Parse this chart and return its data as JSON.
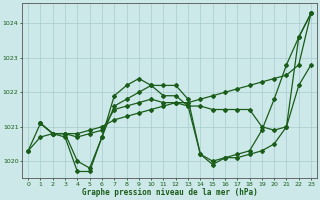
{
  "background_color": "#cce8e8",
  "grid_color": "#a8cccc",
  "line_color": "#1a5c1a",
  "xlabel": "Graphe pression niveau de la mer (hPa)",
  "xlabel_color": "#1a5c1a",
  "xlim": [
    -0.5,
    23.5
  ],
  "ylim": [
    1019.5,
    1024.6
  ],
  "yticks": [
    1020,
    1021,
    1022,
    1023,
    1024
  ],
  "xticks": [
    0,
    1,
    2,
    3,
    4,
    5,
    6,
    7,
    8,
    9,
    10,
    11,
    12,
    13,
    14,
    15,
    16,
    17,
    18,
    19,
    20,
    21,
    22,
    23
  ],
  "line1_x": [
    0,
    1,
    2,
    3,
    4,
    5,
    6,
    7,
    8,
    9,
    10,
    11,
    12,
    13,
    14,
    15,
    16,
    17,
    18,
    19,
    20,
    21,
    22,
    23
  ],
  "line1_y": [
    1020.3,
    1021.1,
    1020.8,
    1020.7,
    1019.7,
    1019.7,
    1020.7,
    1021.9,
    1022.2,
    1022.4,
    1022.2,
    1022.2,
    1022.2,
    1021.8,
    1020.2,
    1019.9,
    1020.1,
    1020.1,
    1020.2,
    1020.3,
    1020.5,
    1021.0,
    1023.6,
    1024.3
  ],
  "line2_x": [
    0,
    1,
    2,
    3,
    4,
    5,
    6,
    7,
    8,
    9,
    10,
    11,
    12,
    13,
    14,
    15,
    16,
    17,
    18,
    19,
    20,
    21,
    22,
    23
  ],
  "line2_y": [
    1020.3,
    1020.7,
    1020.8,
    1020.8,
    1020.8,
    1020.9,
    1021.0,
    1021.2,
    1021.3,
    1021.4,
    1021.5,
    1021.6,
    1021.7,
    1021.7,
    1021.8,
    1021.9,
    1022.0,
    1022.1,
    1022.2,
    1022.3,
    1022.4,
    1022.5,
    1022.8,
    1024.3
  ],
  "line3_x": [
    1,
    2,
    3,
    4,
    5,
    6,
    7,
    8,
    9,
    10,
    11,
    12,
    13,
    14,
    15,
    16,
    17,
    18,
    19,
    20,
    21,
    22,
    23
  ],
  "line3_y": [
    1021.1,
    1020.8,
    1020.8,
    1020.7,
    1020.8,
    1020.9,
    1021.5,
    1021.6,
    1021.7,
    1021.8,
    1021.7,
    1021.7,
    1021.6,
    1021.6,
    1021.5,
    1021.5,
    1021.5,
    1021.5,
    1021.0,
    1020.9,
    1021.0,
    1022.2,
    1022.8
  ],
  "line4_x": [
    1,
    2,
    3,
    4,
    5,
    6,
    7,
    8,
    9,
    10,
    11,
    12,
    13,
    14,
    15,
    16,
    17,
    18,
    19,
    20,
    21,
    22,
    23
  ],
  "line4_y": [
    1021.1,
    1020.8,
    1020.8,
    1020.0,
    1019.8,
    1020.7,
    1021.6,
    1021.8,
    1022.0,
    1022.2,
    1021.9,
    1021.9,
    1021.6,
    1020.2,
    1020.0,
    1020.1,
    1020.2,
    1020.3,
    1020.9,
    1021.8,
    1022.8,
    1023.6,
    1024.3
  ]
}
